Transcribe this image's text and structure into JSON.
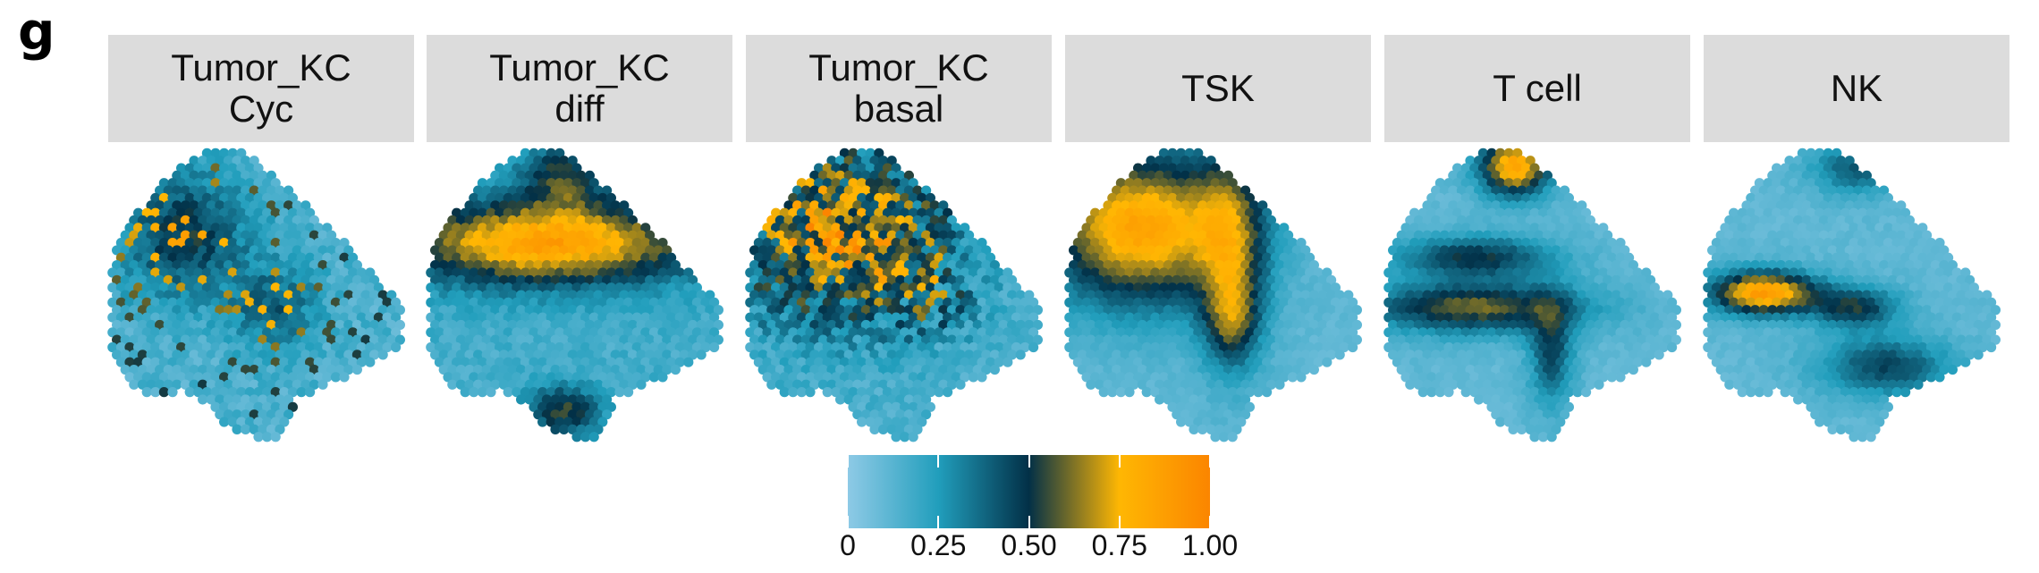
{
  "panel_label": "g",
  "chart_data": {
    "type": "heatmap",
    "description_kind": "spatial spot maps",
    "panels": [
      {
        "title_line1": "Tumor_KC",
        "title_line2": "Cyc"
      },
      {
        "title_line1": "Tumor_KC",
        "title_line2": "diff"
      },
      {
        "title_line1": "Tumor_KC",
        "title_line2": "basal"
      },
      {
        "title_line1": "TSK",
        "title_line2": ""
      },
      {
        "title_line1": "T cell",
        "title_line2": ""
      },
      {
        "title_line1": "NK",
        "title_line2": ""
      }
    ],
    "colorbar": {
      "range": [
        0,
        1
      ],
      "ticks": [
        "0",
        "0.25",
        "0.50",
        "0.75",
        "1.00"
      ],
      "tick_values": [
        0,
        0.25,
        0.5,
        0.75,
        1.0
      ],
      "colors": [
        "#8ecae6",
        "#219ebc",
        "#023047",
        "#ffb703",
        "#fb8500"
      ]
    }
  }
}
